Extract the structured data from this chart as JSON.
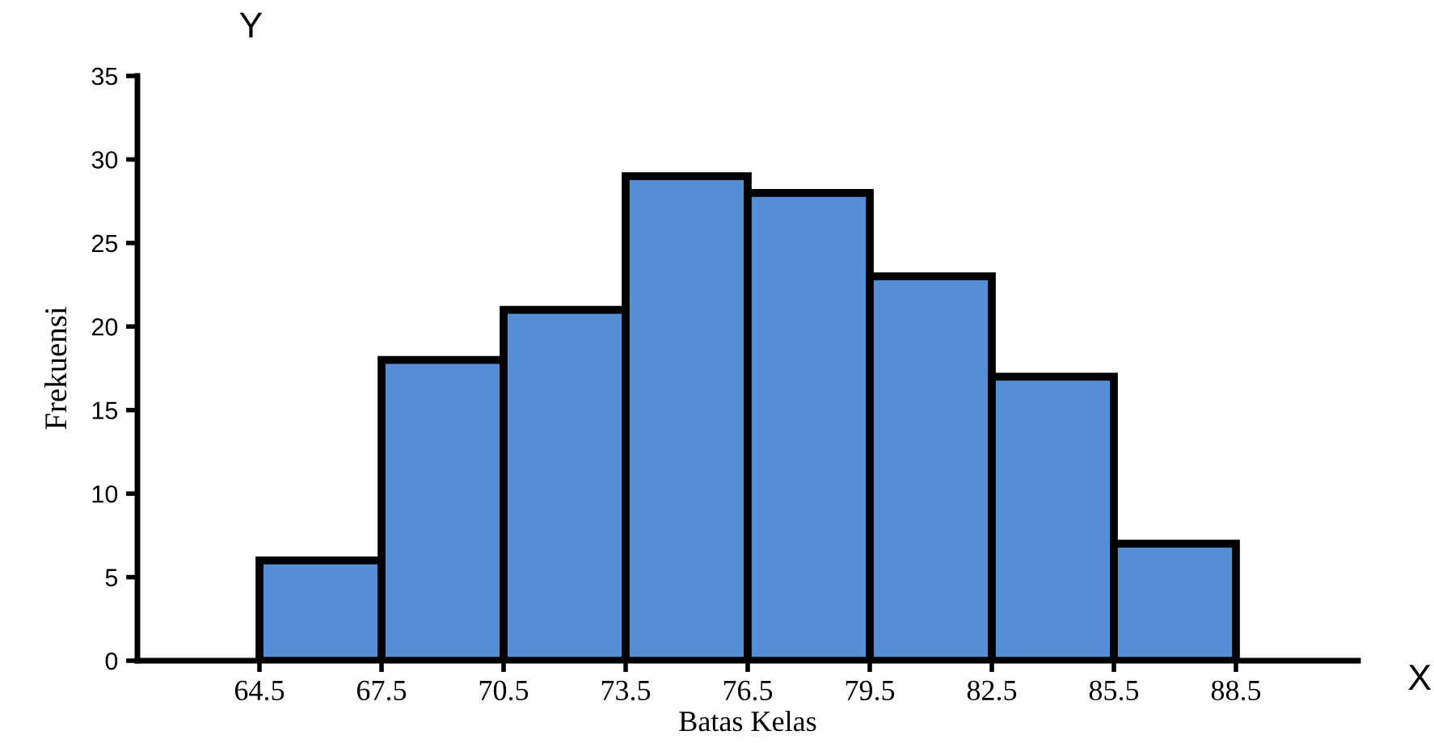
{
  "chart_data": {
    "type": "histogram",
    "xlabel": "Batas Kelas",
    "ylabel": "Frekuensi",
    "annotations": [
      "Y",
      "X"
    ],
    "bins": [
      64.5,
      67.5,
      70.5,
      73.5,
      76.5,
      79.5,
      82.5,
      85.5,
      88.5
    ],
    "values": [
      6,
      18,
      21,
      29,
      28,
      23,
      17,
      7
    ],
    "color": "#558ed5",
    "xlim": [
      61.5,
      91.5
    ],
    "xticks": [
      64.5,
      67.5,
      70.5,
      73.5,
      76.5,
      79.5,
      82.5,
      85.5,
      88.5
    ],
    "ylim": [
      0,
      35
    ],
    "yticks": [
      0,
      5,
      10,
      15,
      20,
      25,
      30,
      35
    ],
    "grid": false
  }
}
